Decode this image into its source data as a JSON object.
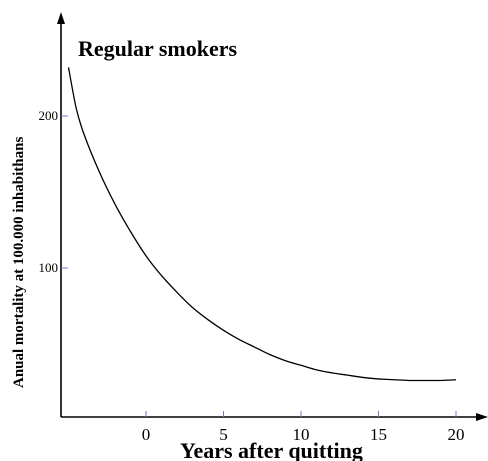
{
  "chart_data": {
    "type": "line",
    "title": "Regular smokers",
    "xlabel": "Years after quitting",
    "ylabel": "Anual mortality at 100.000 inhabithans",
    "xlim": [
      -5.5,
      21.5
    ],
    "ylim": [
      -10,
      245
    ],
    "x_ticks": [
      0,
      5,
      10,
      15,
      20
    ],
    "y_ticks": [
      100,
      200
    ],
    "grid": false,
    "colors": {
      "line": "#000000",
      "axis": "#000000",
      "tick": "#6b7fc4"
    },
    "series": [
      {
        "x": [
          -5,
          -4.5,
          -4,
          -3,
          -2,
          -1,
          0,
          1,
          2,
          3,
          4,
          5,
          6,
          7,
          8,
          9,
          10,
          11,
          12,
          13,
          14,
          15,
          16,
          17,
          18,
          19,
          20
        ],
        "y": [
          232,
          205,
          188,
          163,
          142,
          124,
          108,
          95,
          84,
          74,
          66,
          59,
          53,
          48,
          43,
          39,
          36,
          33,
          31,
          29.5,
          28,
          27,
          26.5,
          26,
          26,
          26,
          26.5
        ]
      }
    ]
  }
}
